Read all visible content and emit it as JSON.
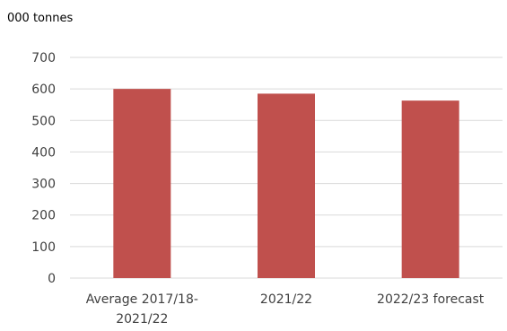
{
  "chart_data": {
    "type": "bar",
    "ylabel": "000 tonnes",
    "categories": [
      [
        "Average 2017/18-",
        "2021/22"
      ],
      [
        "2021/22"
      ],
      [
        "2022/23 forecast"
      ]
    ],
    "values": [
      600,
      585,
      563
    ],
    "ylim": [
      0,
      700
    ],
    "yticks": [
      0,
      100,
      200,
      300,
      400,
      500,
      600,
      700
    ],
    "grid": true,
    "bar_color": "#c0504d",
    "grid_color": "#d9d9d9"
  }
}
